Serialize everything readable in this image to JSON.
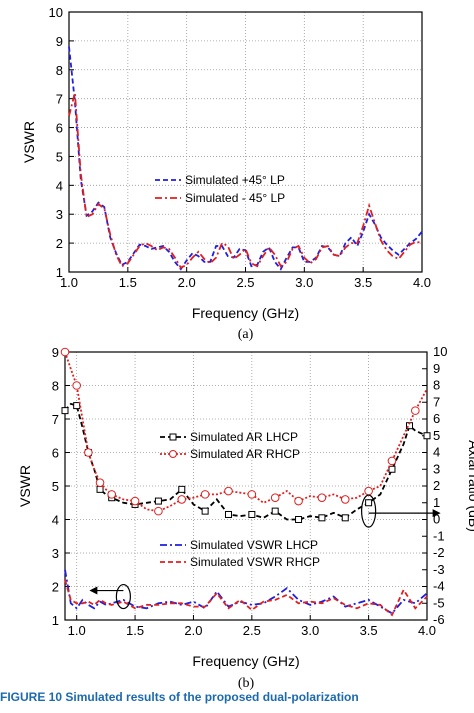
{
  "figure_caption": "FIGURE 10  Simulated results of the proposed dual-polarization",
  "chart_data": [
    {
      "type": "line",
      "caption": "(a)",
      "xlabel": "Frequency (GHz)",
      "ylabel": "VSWR",
      "xlim": [
        1.0,
        4.0
      ],
      "ylim": [
        1,
        10
      ],
      "xticks": [
        "1.0",
        "1.5",
        "2.0",
        "2.5",
        "3.0",
        "3.5",
        "4.0"
      ],
      "yticks": [
        "1",
        "2",
        "3",
        "4",
        "5",
        "6",
        "7",
        "8",
        "9",
        "10"
      ],
      "grid": true,
      "legend_position": "center",
      "series": [
        {
          "name": "Simulated +45° LP",
          "color": "#1f1fe0",
          "dash": "dashed",
          "x": [
            1.0,
            1.05,
            1.1,
            1.15,
            1.2,
            1.25,
            1.3,
            1.35,
            1.4,
            1.45,
            1.5,
            1.55,
            1.6,
            1.65,
            1.7,
            1.75,
            1.8,
            1.85,
            1.9,
            1.95,
            2.0,
            2.05,
            2.1,
            2.15,
            2.2,
            2.25,
            2.3,
            2.35,
            2.4,
            2.45,
            2.5,
            2.55,
            2.6,
            2.65,
            2.7,
            2.75,
            2.8,
            2.85,
            2.9,
            2.95,
            3.0,
            3.05,
            3.1,
            3.15,
            3.2,
            3.25,
            3.3,
            3.35,
            3.4,
            3.45,
            3.5,
            3.55,
            3.6,
            3.65,
            3.7,
            3.75,
            3.8,
            3.85,
            3.9,
            3.95,
            4.0
          ],
          "y": [
            8.8,
            6.9,
            4.2,
            2.95,
            3.1,
            3.4,
            3.25,
            2.2,
            1.65,
            1.25,
            1.35,
            1.65,
            1.95,
            1.9,
            1.8,
            1.85,
            1.9,
            1.7,
            1.35,
            1.1,
            1.4,
            1.65,
            1.55,
            1.35,
            1.35,
            1.9,
            1.9,
            1.55,
            1.5,
            1.8,
            1.75,
            1.2,
            1.25,
            1.7,
            1.85,
            1.35,
            1.1,
            1.5,
            1.85,
            1.85,
            1.35,
            1.35,
            1.5,
            1.9,
            1.85,
            1.6,
            1.55,
            2.0,
            2.2,
            1.9,
            2.4,
            3.0,
            2.65,
            2.2,
            1.95,
            1.75,
            1.6,
            1.8,
            2.0,
            2.15,
            2.4
          ]
        },
        {
          "name": "Simulated - 45° LP",
          "color": "#e01f1f",
          "dash": "dashdot",
          "x": [
            1.0,
            1.05,
            1.1,
            1.15,
            1.2,
            1.25,
            1.3,
            1.35,
            1.4,
            1.45,
            1.5,
            1.55,
            1.6,
            1.65,
            1.7,
            1.75,
            1.8,
            1.85,
            1.9,
            1.95,
            2.0,
            2.05,
            2.1,
            2.15,
            2.2,
            2.25,
            2.3,
            2.35,
            2.4,
            2.45,
            2.5,
            2.55,
            2.6,
            2.65,
            2.7,
            2.75,
            2.8,
            2.85,
            2.9,
            2.95,
            3.0,
            3.05,
            3.1,
            3.15,
            3.2,
            3.25,
            3.3,
            3.35,
            3.4,
            3.45,
            3.5,
            3.55,
            3.6,
            3.65,
            3.7,
            3.75,
            3.8,
            3.85,
            3.9,
            3.95,
            4.0
          ],
          "y": [
            6.4,
            7.2,
            4.4,
            2.9,
            3.0,
            3.35,
            3.2,
            2.3,
            1.6,
            1.2,
            1.3,
            1.6,
            1.9,
            2.0,
            1.9,
            1.75,
            1.85,
            1.8,
            1.5,
            1.15,
            1.25,
            1.5,
            1.7,
            1.45,
            1.3,
            1.5,
            2.0,
            1.9,
            1.45,
            1.6,
            1.8,
            1.3,
            1.2,
            1.55,
            1.85,
            1.6,
            1.2,
            1.35,
            1.8,
            1.9,
            1.5,
            1.3,
            1.45,
            1.85,
            1.9,
            1.6,
            1.55,
            1.85,
            2.0,
            2.0,
            2.6,
            3.3,
            2.7,
            2.1,
            1.75,
            1.55,
            1.45,
            1.7,
            1.95,
            2.05,
            2.0
          ]
        }
      ]
    },
    {
      "type": "line",
      "caption": "(b)",
      "xlabel": "Frequency (GHz)",
      "ylabel": "VSWR",
      "y2label": "Axial ratio (dB)",
      "xlim": [
        0.9,
        4.0
      ],
      "ylim": [
        1,
        9
      ],
      "y2lim": [
        -6,
        10
      ],
      "xticks": [
        "1.0",
        "1.5",
        "2.0",
        "2.5",
        "3.0",
        "3.5",
        "4.0"
      ],
      "yticks": [
        "1",
        "2",
        "3",
        "4",
        "5",
        "6",
        "7",
        "8",
        "9"
      ],
      "y2ticks": [
        "-6",
        "-5",
        "-4",
        "-3",
        "-2",
        "-1",
        "0",
        "1",
        "2",
        "3",
        "4",
        "5",
        "6",
        "7",
        "8",
        "9",
        "10"
      ],
      "grid": true,
      "legend_position": "center",
      "series": [
        {
          "name": "Simulated AR LHCP",
          "axis": "right",
          "color": "#000000",
          "dash": "dashed",
          "marker": "square-open",
          "x": [
            0.9,
            0.95,
            1.0,
            1.05,
            1.1,
            1.15,
            1.2,
            1.25,
            1.3,
            1.4,
            1.5,
            1.6,
            1.7,
            1.8,
            1.9,
            2.0,
            2.1,
            2.2,
            2.3,
            2.4,
            2.5,
            2.6,
            2.7,
            2.8,
            2.9,
            3.0,
            3.1,
            3.2,
            3.3,
            3.4,
            3.5,
            3.6,
            3.7,
            3.8,
            3.85,
            3.9,
            4.0
          ],
          "y": [
            6.5,
            6.9,
            6.8,
            5.5,
            4.0,
            3.0,
            1.8,
            1.5,
            1.3,
            1.0,
            0.9,
            1.0,
            1.1,
            1.2,
            1.8,
            0.9,
            0.5,
            1.2,
            0.3,
            0.2,
            0.3,
            0.1,
            0.5,
            0.0,
            0.0,
            0.2,
            0.1,
            0.4,
            0.1,
            0.6,
            1.0,
            1.5,
            3.0,
            4.5,
            5.6,
            5.3,
            5.0
          ]
        },
        {
          "name": "Simulated AR RHCP",
          "axis": "right",
          "color": "#e01f1f",
          "dash": "dotted",
          "marker": "circle-open",
          "x": [
            0.9,
            0.95,
            1.0,
            1.05,
            1.1,
            1.15,
            1.2,
            1.25,
            1.3,
            1.4,
            1.5,
            1.6,
            1.7,
            1.8,
            1.9,
            2.0,
            2.1,
            2.2,
            2.3,
            2.4,
            2.5,
            2.6,
            2.7,
            2.8,
            2.9,
            3.0,
            3.1,
            3.2,
            3.3,
            3.4,
            3.5,
            3.6,
            3.7,
            3.8,
            3.9,
            4.0
          ],
          "y": [
            10.0,
            9.0,
            8.0,
            6.0,
            4.0,
            3.0,
            2.2,
            1.8,
            1.5,
            1.2,
            1.1,
            0.6,
            0.5,
            0.8,
            1.2,
            1.3,
            1.5,
            1.5,
            1.7,
            1.6,
            1.5,
            1.0,
            1.3,
            1.7,
            1.1,
            1.4,
            1.3,
            1.5,
            1.2,
            1.3,
            1.7,
            2.0,
            3.5,
            5.0,
            6.5,
            7.8
          ]
        },
        {
          "name": "Simulated VSWR LHCP",
          "axis": "left",
          "color": "#1f1fe0",
          "dash": "dashdot",
          "x": [
            0.9,
            0.95,
            1.0,
            1.05,
            1.1,
            1.15,
            1.2,
            1.25,
            1.3,
            1.4,
            1.5,
            1.6,
            1.7,
            1.8,
            1.9,
            2.0,
            2.1,
            2.2,
            2.3,
            2.4,
            2.5,
            2.6,
            2.7,
            2.8,
            2.9,
            3.0,
            3.1,
            3.2,
            3.3,
            3.4,
            3.5,
            3.6,
            3.7,
            3.8,
            3.9,
            4.0
          ],
          "y": [
            2.5,
            1.5,
            1.35,
            1.6,
            1.45,
            1.35,
            1.55,
            1.45,
            1.5,
            1.6,
            1.4,
            1.35,
            1.5,
            1.55,
            1.45,
            1.55,
            1.35,
            1.85,
            1.4,
            1.55,
            1.45,
            1.5,
            1.7,
            1.95,
            1.6,
            1.45,
            1.55,
            1.7,
            1.4,
            1.5,
            1.6,
            1.4,
            1.2,
            1.6,
            1.5,
            1.8
          ]
        },
        {
          "name": "Simulated VSWR RHCP",
          "axis": "left",
          "color": "#e01f1f",
          "dash": "dashed",
          "x": [
            0.9,
            0.95,
            1.0,
            1.05,
            1.1,
            1.15,
            1.2,
            1.25,
            1.3,
            1.4,
            1.5,
            1.6,
            1.7,
            1.8,
            1.9,
            2.0,
            2.1,
            2.2,
            2.3,
            2.4,
            2.5,
            2.6,
            2.7,
            2.8,
            2.9,
            3.0,
            3.1,
            3.2,
            3.3,
            3.4,
            3.5,
            3.6,
            3.7,
            3.8,
            3.9,
            4.0
          ],
          "y": [
            2.2,
            1.6,
            1.5,
            1.5,
            1.55,
            1.45,
            1.6,
            1.5,
            1.45,
            1.55,
            1.35,
            1.45,
            1.45,
            1.5,
            1.5,
            1.4,
            1.4,
            1.8,
            1.35,
            1.6,
            1.3,
            1.55,
            1.6,
            1.75,
            1.5,
            1.55,
            1.5,
            1.65,
            1.45,
            1.35,
            1.5,
            1.45,
            1.15,
            1.9,
            1.35,
            1.7
          ]
        }
      ],
      "arrows": [
        {
          "points_to": "right",
          "x": 3.5,
          "y2": 0.5
        },
        {
          "points_to": "left",
          "x": 1.4,
          "y": 1.7
        }
      ]
    }
  ]
}
